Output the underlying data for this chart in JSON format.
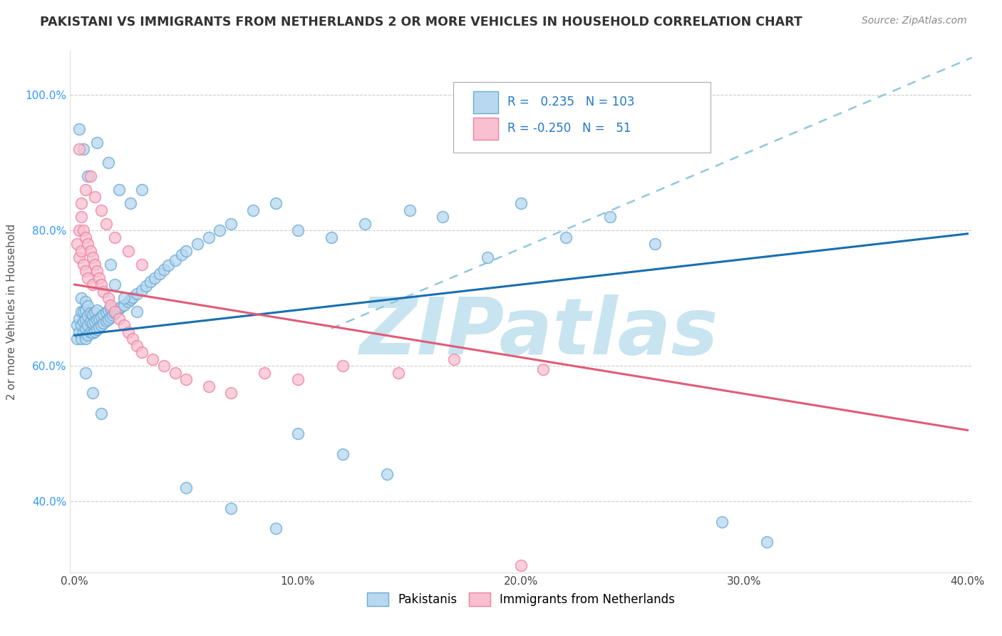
{
  "title": "PAKISTANI VS IMMIGRANTS FROM NETHERLANDS 2 OR MORE VEHICLES IN HOUSEHOLD CORRELATION CHART",
  "source": "Source: ZipAtlas.com",
  "ylabel": "2 or more Vehicles in Household",
  "xlim": [
    -0.002,
    0.402
  ],
  "ylim": [
    0.295,
    1.065
  ],
  "yticks": [
    0.4,
    0.6,
    0.8,
    1.0
  ],
  "ytick_labels": [
    "40.0%",
    "60.0%",
    "80.0%",
    "100.0%"
  ],
  "xticks": [
    0.0,
    0.1,
    0.2,
    0.3,
    0.4
  ],
  "xtick_labels": [
    "0.0%",
    "10.0%",
    "20.0%",
    "30.0%",
    "40.0%"
  ],
  "blue_line_color": "#1a6faf",
  "pink_line_color": "#e05c78",
  "dashed_line_color": "#90c8e0",
  "watermark": "ZIPatlas",
  "watermark_color": "#c8e4f0",
  "blue_dot_face": "#b8d8f0",
  "blue_dot_edge": "#6aaad4",
  "pink_dot_face": "#f8c0d0",
  "pink_dot_edge": "#f080a0",
  "blue_trend_x": [
    0.0,
    0.4
  ],
  "blue_trend_y": [
    0.645,
    0.795
  ],
  "pink_trend_x": [
    0.0,
    0.4
  ],
  "pink_trend_y": [
    0.72,
    0.505
  ],
  "dashed_trend_x": [
    0.115,
    0.402
  ],
  "dashed_trend_y": [
    0.655,
    1.055
  ],
  "blue_scatter_x": [
    0.001,
    0.001,
    0.002,
    0.002,
    0.003,
    0.003,
    0.003,
    0.003,
    0.004,
    0.004,
    0.004,
    0.005,
    0.005,
    0.005,
    0.005,
    0.005,
    0.006,
    0.006,
    0.006,
    0.006,
    0.007,
    0.007,
    0.007,
    0.008,
    0.008,
    0.008,
    0.009,
    0.009,
    0.009,
    0.01,
    0.01,
    0.01,
    0.011,
    0.011,
    0.012,
    0.012,
    0.013,
    0.013,
    0.014,
    0.014,
    0.015,
    0.015,
    0.016,
    0.016,
    0.017,
    0.018,
    0.019,
    0.02,
    0.021,
    0.022,
    0.024,
    0.025,
    0.026,
    0.028,
    0.03,
    0.032,
    0.034,
    0.036,
    0.038,
    0.04,
    0.042,
    0.045,
    0.048,
    0.05,
    0.055,
    0.06,
    0.065,
    0.07,
    0.08,
    0.09,
    0.1,
    0.115,
    0.13,
    0.15,
    0.165,
    0.185,
    0.2,
    0.22,
    0.24,
    0.26,
    0.29,
    0.31,
    0.005,
    0.008,
    0.012,
    0.002,
    0.004,
    0.006,
    0.01,
    0.015,
    0.02,
    0.025,
    0.03,
    0.05,
    0.07,
    0.09,
    0.1,
    0.12,
    0.14,
    0.016,
    0.018,
    0.022,
    0.028
  ],
  "blue_scatter_y": [
    0.64,
    0.66,
    0.65,
    0.67,
    0.64,
    0.66,
    0.68,
    0.7,
    0.65,
    0.665,
    0.68,
    0.64,
    0.655,
    0.668,
    0.682,
    0.695,
    0.645,
    0.66,
    0.674,
    0.688,
    0.65,
    0.665,
    0.678,
    0.648,
    0.663,
    0.676,
    0.651,
    0.665,
    0.679,
    0.654,
    0.668,
    0.682,
    0.657,
    0.67,
    0.66,
    0.673,
    0.663,
    0.676,
    0.666,
    0.679,
    0.669,
    0.682,
    0.672,
    0.685,
    0.675,
    0.678,
    0.681,
    0.684,
    0.687,
    0.69,
    0.695,
    0.698,
    0.701,
    0.706,
    0.712,
    0.718,
    0.724,
    0.73,
    0.736,
    0.742,
    0.748,
    0.756,
    0.764,
    0.77,
    0.78,
    0.79,
    0.8,
    0.81,
    0.83,
    0.84,
    0.8,
    0.79,
    0.81,
    0.83,
    0.82,
    0.76,
    0.84,
    0.79,
    0.82,
    0.78,
    0.37,
    0.34,
    0.59,
    0.56,
    0.53,
    0.95,
    0.92,
    0.88,
    0.93,
    0.9,
    0.86,
    0.84,
    0.86,
    0.42,
    0.39,
    0.36,
    0.5,
    0.47,
    0.44,
    0.75,
    0.72,
    0.7,
    0.68
  ],
  "pink_scatter_x": [
    0.001,
    0.002,
    0.002,
    0.003,
    0.003,
    0.004,
    0.004,
    0.005,
    0.005,
    0.006,
    0.006,
    0.007,
    0.008,
    0.008,
    0.009,
    0.01,
    0.011,
    0.012,
    0.013,
    0.015,
    0.016,
    0.018,
    0.02,
    0.022,
    0.024,
    0.026,
    0.028,
    0.03,
    0.035,
    0.04,
    0.045,
    0.05,
    0.06,
    0.07,
    0.085,
    0.1,
    0.12,
    0.145,
    0.17,
    0.21,
    0.003,
    0.005,
    0.007,
    0.009,
    0.012,
    0.014,
    0.018,
    0.024,
    0.03,
    0.2,
    0.002
  ],
  "pink_scatter_y": [
    0.78,
    0.8,
    0.76,
    0.82,
    0.77,
    0.8,
    0.75,
    0.79,
    0.74,
    0.78,
    0.73,
    0.77,
    0.76,
    0.72,
    0.75,
    0.74,
    0.73,
    0.72,
    0.71,
    0.7,
    0.69,
    0.68,
    0.67,
    0.66,
    0.65,
    0.64,
    0.63,
    0.62,
    0.61,
    0.6,
    0.59,
    0.58,
    0.57,
    0.56,
    0.59,
    0.58,
    0.6,
    0.59,
    0.61,
    0.595,
    0.84,
    0.86,
    0.88,
    0.85,
    0.83,
    0.81,
    0.79,
    0.77,
    0.75,
    0.305,
    0.92
  ]
}
